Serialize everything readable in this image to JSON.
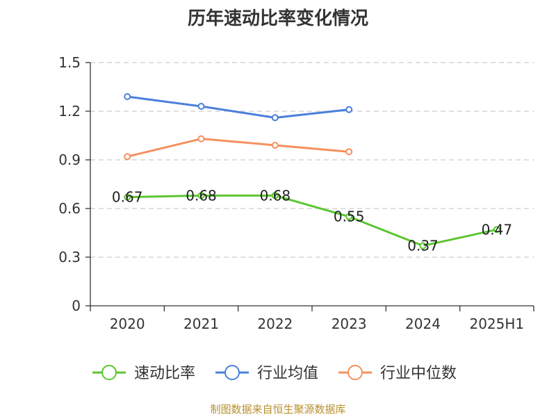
{
  "chart_data": {
    "type": "line",
    "title": "历年速动比率变化情况",
    "categories": [
      "2020",
      "2021",
      "2022",
      "2023",
      "2024",
      "2025H1"
    ],
    "ylim": [
      0,
      1.5
    ],
    "yticks": [
      "0",
      "0.3",
      "0.6",
      "0.9",
      "1.2",
      "1.5"
    ],
    "grid": true,
    "legend_position": "bottom",
    "series": [
      {
        "name": "速动比率",
        "color": "#5cc630",
        "values": [
          0.67,
          0.68,
          0.68,
          0.55,
          0.37,
          0.47
        ],
        "labels": [
          "0.67",
          "0.68",
          "0.68",
          "0.55",
          "0.37",
          "0.47"
        ]
      },
      {
        "name": "行业均值",
        "color": "#4a7fdc",
        "values": [
          1.29,
          1.23,
          1.16,
          1.21,
          null,
          null
        ]
      },
      {
        "name": "行业中位数",
        "color": "#f5905d",
        "values": [
          0.92,
          1.03,
          0.99,
          0.95,
          null,
          null
        ]
      }
    ],
    "source": "制图数据来自恒生聚源数据库"
  }
}
